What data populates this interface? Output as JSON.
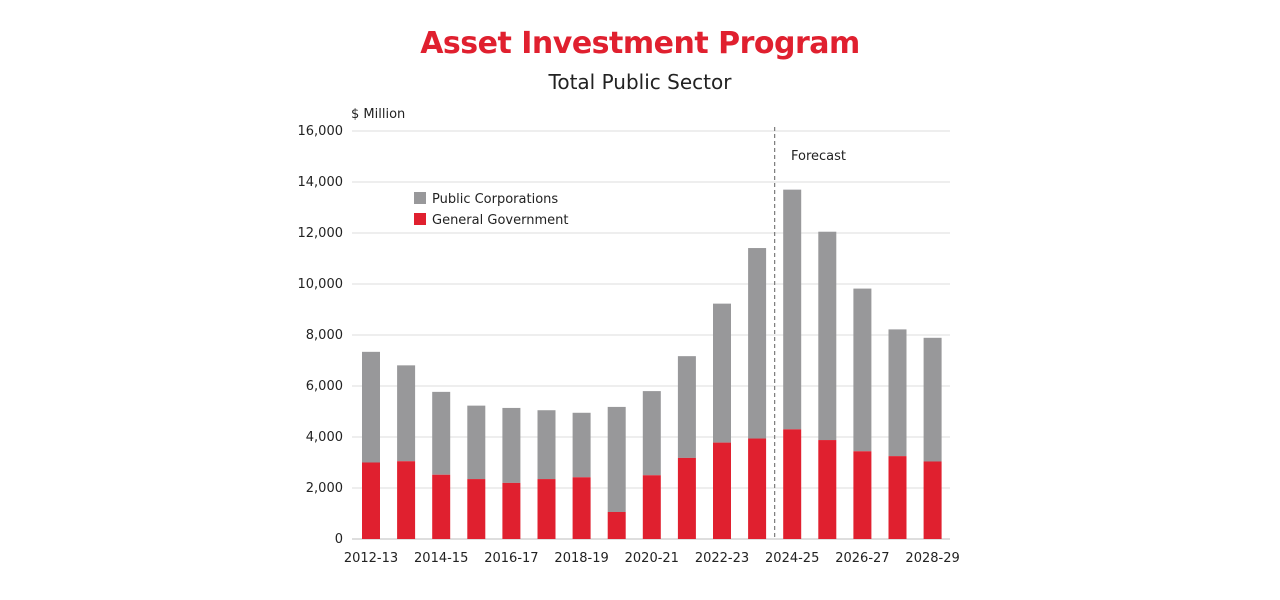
{
  "chart_data": {
    "type": "bar",
    "stacked": true,
    "title": "Asset Investment Program",
    "subtitle": "Total Public Sector",
    "ylabel": "$ Million",
    "ylim": [
      0,
      16000
    ],
    "yticks": [
      0,
      2000,
      4000,
      6000,
      8000,
      10000,
      12000,
      14000,
      16000
    ],
    "ytick_labels": [
      "0",
      "2,000",
      "4,000",
      "6,000",
      "8,000",
      "10,000",
      "12,000",
      "14,000",
      "16,000"
    ],
    "categories": [
      "2012-13",
      "2013-14",
      "2014-15",
      "2015-16",
      "2016-17",
      "2017-18",
      "2018-19",
      "2019-20",
      "2020-21",
      "2021-22",
      "2022-23",
      "2023-24",
      "2024-25",
      "2025-26",
      "2026-27",
      "2027-28",
      "2028-29"
    ],
    "xtick_labels": [
      "2012-13",
      "2014-15",
      "2016-17",
      "2018-19",
      "2020-21",
      "2022-23",
      "2024-25",
      "2026-27",
      "2028-29"
    ],
    "series": [
      {
        "name": "General Government",
        "color": "#e0202f",
        "values": [
          3000,
          3050,
          2520,
          2350,
          2200,
          2350,
          2420,
          1060,
          2500,
          3180,
          3780,
          3940,
          4300,
          3880,
          3440,
          3250,
          3040
        ]
      },
      {
        "name": "Public Corporations",
        "color": "#98989a",
        "values": [
          4340,
          3760,
          3250,
          2880,
          2940,
          2700,
          2530,
          4120,
          3300,
          3990,
          5450,
          7470,
          9400,
          8170,
          6380,
          4970,
          4850
        ]
      }
    ],
    "legend": [
      "Public Corporations",
      "General Government"
    ],
    "legend_position": "top-left",
    "annotation": "Forecast",
    "forecast_start": "2024-25",
    "grid": true
  }
}
